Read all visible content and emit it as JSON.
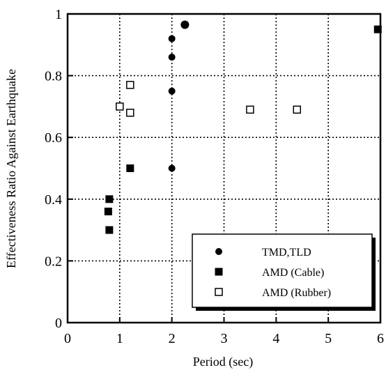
{
  "chart_data": {
    "type": "scatter",
    "title": "",
    "xlabel": "Period (sec)",
    "ylabel": "Effectiveness Ratio Against Earthquake",
    "xlim": [
      0,
      6
    ],
    "ylim": [
      0,
      1
    ],
    "x_ticks": [
      "0",
      "1",
      "2",
      "3",
      "4",
      "5",
      "6"
    ],
    "y_ticks": [
      "0",
      "0.2",
      "0.4",
      "0.6",
      "0.8",
      "1"
    ],
    "grid": true,
    "legend_position": "bottom-right",
    "series": [
      {
        "name": "TMD,TLD",
        "marker": "filled-circle",
        "points": [
          {
            "x": 2.0,
            "y": 0.92
          },
          {
            "x": 2.0,
            "y": 0.86
          },
          {
            "x": 2.0,
            "y": 0.75
          },
          {
            "x": 2.0,
            "y": 0.5
          },
          {
            "x": 2.25,
            "y": 0.965
          }
        ]
      },
      {
        "name": "AMD (Cable)",
        "marker": "filled-square",
        "points": [
          {
            "x": 0.8,
            "y": 0.4
          },
          {
            "x": 0.78,
            "y": 0.36
          },
          {
            "x": 0.8,
            "y": 0.3
          },
          {
            "x": 1.2,
            "y": 0.5
          },
          {
            "x": 5.95,
            "y": 0.95
          }
        ]
      },
      {
        "name": "AMD (Rubber)",
        "marker": "open-square",
        "points": [
          {
            "x": 1.0,
            "y": 0.7
          },
          {
            "x": 1.2,
            "y": 0.77
          },
          {
            "x": 1.2,
            "y": 0.68
          },
          {
            "x": 3.5,
            "y": 0.69
          },
          {
            "x": 4.4,
            "y": 0.69
          }
        ]
      }
    ]
  }
}
